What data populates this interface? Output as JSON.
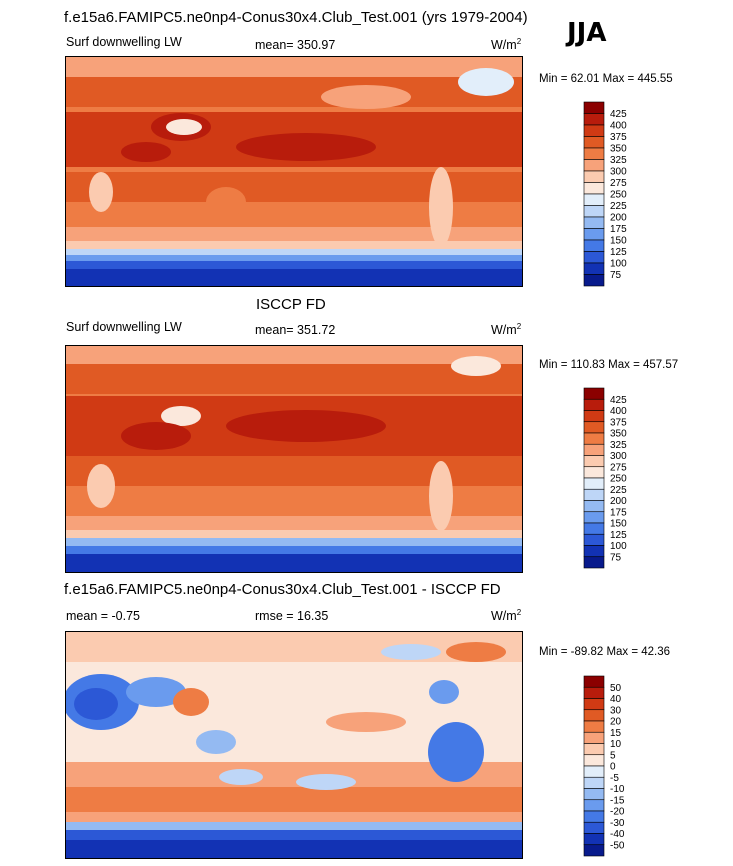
{
  "season": "JJA",
  "panels": [
    {
      "title": "f.e15a6.FAMIPC5.ne0np4-Conus30x4.Club_Test.001 (yrs 1979-2004)",
      "left_label": "Surf downwelling LW",
      "mean_text": "mean= 350.97",
      "units_base": "W/m",
      "units_exp": "2",
      "minmax": "Min =  62.01 Max = 445.55",
      "levels": [
        "425",
        "400",
        "375",
        "350",
        "325",
        "300",
        "275",
        "250",
        "225",
        "200",
        "175",
        "150",
        "125",
        "100",
        "75"
      ],
      "colors": [
        "#8b0000",
        "#b81c0c",
        "#d03a14",
        "#e05a24",
        "#ee7c44",
        "#f7a27a",
        "#fbcbb0",
        "#fbe8dc",
        "#e2eefa",
        "#bed6f7",
        "#94baf2",
        "#6a9bee",
        "#4479e6",
        "#2c58d6",
        "#1232b4",
        "#081a8c"
      ]
    },
    {
      "title": "ISCCP FD",
      "left_label": "Surf downwelling LW",
      "mean_text": "mean= 351.72",
      "units_base": "W/m",
      "units_exp": "2",
      "minmax": "Min = 110.83 Max = 457.57",
      "levels": [
        "425",
        "400",
        "375",
        "350",
        "325",
        "300",
        "275",
        "250",
        "225",
        "200",
        "175",
        "150",
        "125",
        "100",
        "75"
      ],
      "colors": [
        "#8b0000",
        "#b81c0c",
        "#d03a14",
        "#e05a24",
        "#ee7c44",
        "#f7a27a",
        "#fbcbb0",
        "#fbe8dc",
        "#e2eefa",
        "#bed6f7",
        "#94baf2",
        "#6a9bee",
        "#4479e6",
        "#2c58d6",
        "#1232b4",
        "#081a8c"
      ]
    },
    {
      "title": "f.e15a6.FAMIPC5.ne0np4-Conus30x4.Club_Test.001 - ISCCP FD",
      "left_label": "mean =  -0.75",
      "mean_text": "rmse =  16.35",
      "units_base": "W/m",
      "units_exp": "2",
      "minmax": "Min = -89.82 Max =  42.36",
      "levels": [
        "50",
        "40",
        "30",
        "20",
        "15",
        "10",
        "5",
        "0",
        "-5",
        "-10",
        "-15",
        "-20",
        "-30",
        "-40",
        "-50"
      ],
      "colors": [
        "#8b0000",
        "#b81c0c",
        "#d03a14",
        "#e05a24",
        "#ee7c44",
        "#f7a27a",
        "#fbcbb0",
        "#fbe8dc",
        "#e2eefa",
        "#bed6f7",
        "#94baf2",
        "#6a9bee",
        "#4479e6",
        "#2c58d6",
        "#1232b4",
        "#081a8c"
      ]
    }
  ]
}
